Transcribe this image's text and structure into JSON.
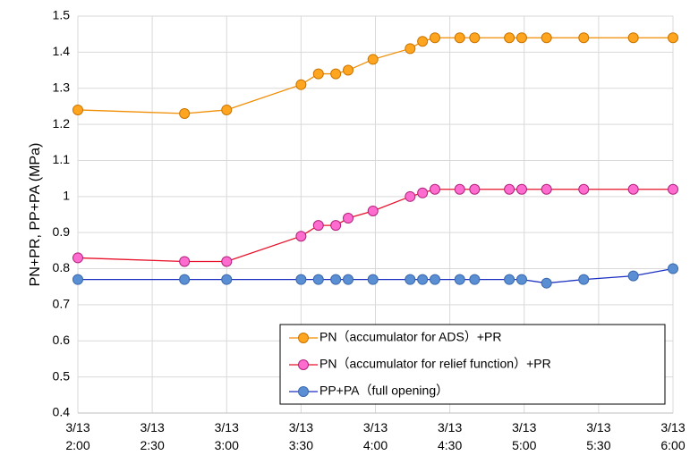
{
  "chart_data": {
    "type": "line",
    "y_label": "PN+PR, PP+PA (MPa)",
    "x": [
      "2:00",
      "2:43",
      "3:00",
      "3:30",
      "3:37",
      "3:44",
      "3:49",
      "3:59",
      "4:14",
      "4:19",
      "4:24",
      "4:34",
      "4:40",
      "4:54",
      "4:59",
      "5:09",
      "5:24",
      "5:44",
      "6:00"
    ],
    "xlim": [
      "2:00",
      "6:00"
    ],
    "xticks": [
      {
        "value": "2:00",
        "label": "3/13\n2:00"
      },
      {
        "value": "2:30",
        "label": "3/13\n2:30"
      },
      {
        "value": "3:00",
        "label": "3/13\n3:00"
      },
      {
        "value": "3:30",
        "label": "3/13\n3:30"
      },
      {
        "value": "4:00",
        "label": "3/13\n4:00"
      },
      {
        "value": "4:30",
        "label": "3/13\n4:30"
      },
      {
        "value": "5:00",
        "label": "3/13\n5:00"
      },
      {
        "value": "5:30",
        "label": "3/13\n5:30"
      },
      {
        "value": "6:00",
        "label": "3/13\n6:00"
      }
    ],
    "ylim": [
      0.4,
      1.5
    ],
    "yticks": [
      0.4,
      0.5,
      0.6,
      0.7,
      0.8,
      0.9,
      1,
      1.1,
      1.2,
      1.3,
      1.4,
      1.5
    ],
    "grid": true,
    "legend": "lower-right",
    "series": [
      {
        "name": "PN（accumulator for ADS）+PR",
        "color": "#f08c00",
        "marker_color": "#ffa51f",
        "marker_edge": "#c87400",
        "values": [
          1.24,
          1.23,
          1.24,
          1.31,
          1.34,
          1.34,
          1.35,
          1.38,
          1.41,
          1.43,
          1.44,
          1.44,
          1.44,
          1.44,
          1.44,
          1.44,
          1.44,
          1.44,
          1.44
        ]
      },
      {
        "name": "PN（accumulator for relief function）+PR",
        "color": "#e8102a",
        "marker_color": "#ff6ccf",
        "marker_edge": "#b0207a",
        "values": [
          0.83,
          0.82,
          0.82,
          0.89,
          0.92,
          0.92,
          0.94,
          0.96,
          1.0,
          1.01,
          1.02,
          1.02,
          1.02,
          1.02,
          1.02,
          1.02,
          1.02,
          1.02,
          1.02
        ]
      },
      {
        "name": "PP+PA（full opening）",
        "color": "#1a2fc0",
        "marker_color": "#5b8fd4",
        "marker_edge": "#3a68ad",
        "values": [
          0.77,
          0.77,
          0.77,
          0.77,
          0.77,
          0.77,
          0.77,
          0.77,
          0.77,
          0.77,
          0.77,
          0.77,
          0.77,
          0.77,
          0.77,
          0.76,
          0.77,
          0.78,
          0.8
        ]
      }
    ]
  }
}
